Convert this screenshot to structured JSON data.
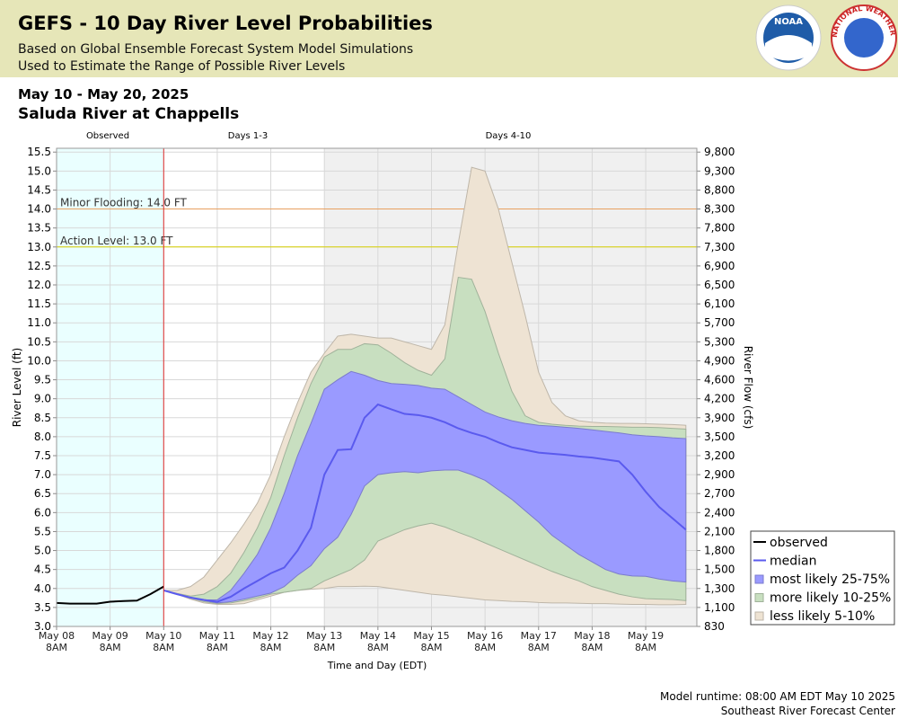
{
  "header": {
    "title": "GEFS - 10 Day River Level Probabilities",
    "subtitle_1": "Based on Global Ensemble Forecast System Model Simulations",
    "subtitle_2": "Used to Estimate the Range of Possible River Levels",
    "date_range": "May 10 - May 20, 2025",
    "location": "Saluda River at Chappells"
  },
  "logos": {
    "noaa": "NOAA",
    "nws": "NATIONAL WEATHER SERVICE"
  },
  "chart_data": {
    "type": "band",
    "x_label": "Time and Day (EDT)",
    "y_label": "River Level (ft)",
    "y2_label": "River Flow (cfs)",
    "periods": [
      {
        "label": "Observed",
        "color": "#eaffff"
      },
      {
        "label": "Days 1-3",
        "color": "#ffffff"
      },
      {
        "label": "Days 4-10",
        "color": "#f0f0f0"
      }
    ],
    "categories": [
      "May 08 8AM",
      null,
      null,
      null,
      "May 09 8AM",
      null,
      null,
      null,
      "May 10 8AM",
      null,
      null,
      null,
      "May 11 8AM",
      null,
      null,
      null,
      "May 12 8AM",
      null,
      null,
      null,
      "May 13 8AM",
      null,
      null,
      null,
      "May 14 8AM",
      null,
      null,
      null,
      "May 15 8AM",
      null,
      null,
      null,
      "May 16 8AM",
      null,
      null,
      null,
      "May 17 8AM",
      null,
      null,
      null,
      "May 18 8AM",
      null,
      null,
      null,
      "May 19 8AM",
      null,
      null,
      null
    ],
    "ylim": [
      3.0,
      15.6
    ],
    "yticks": [
      {
        "value": 3,
        "label": "3.0"
      },
      3.5,
      {
        "value": 4,
        "label": "4.0"
      },
      4.5,
      {
        "value": 5,
        "label": "5.0"
      },
      5.5,
      {
        "value": 6,
        "label": "6.0"
      },
      6.5,
      {
        "value": 7,
        "label": "7.0"
      },
      7.5,
      {
        "value": 8,
        "label": "8.0"
      },
      8.5,
      {
        "value": 9,
        "label": "9.0"
      },
      9.5,
      {
        "value": 10,
        "label": "10.0"
      },
      10.5,
      {
        "value": 11,
        "label": "11.0"
      },
      11.5,
      {
        "value": 12,
        "label": "12.0"
      },
      12.5,
      {
        "value": 13,
        "label": "13.0"
      },
      13.5,
      {
        "value": 14,
        "label": "14.0"
      },
      14.5,
      {
        "value": 15,
        "label": "15.0"
      },
      15.5
    ],
    "y2ticks": [
      830,
      {
        "value": 1100,
        "label": "1,100"
      },
      {
        "value": 1300,
        "label": "1,300"
      },
      {
        "value": 1500,
        "label": "1,500"
      },
      {
        "value": 1800,
        "label": "1,800"
      },
      {
        "value": 2100,
        "label": "2,100"
      },
      {
        "value": 2400,
        "label": "2,400"
      },
      {
        "value": 2700,
        "label": "2,700"
      },
      {
        "value": 2900,
        "label": "2,900"
      },
      {
        "value": 3200,
        "label": "3,200"
      },
      {
        "value": 3500,
        "label": "3,500"
      },
      {
        "value": 3900,
        "label": "3,900"
      },
      {
        "value": 4200,
        "label": "4,200"
      },
      {
        "value": 4600,
        "label": "4,600"
      },
      {
        "value": 4900,
        "label": "4,900"
      },
      {
        "value": 5300,
        "label": "5,300"
      },
      {
        "value": 5700,
        "label": "5,700"
      },
      {
        "value": 6100,
        "label": "6,100"
      },
      {
        "value": 6500,
        "label": "6,500"
      },
      {
        "value": 6900,
        "label": "6,900"
      },
      {
        "value": 7300,
        "label": "7,300"
      },
      {
        "value": 7800,
        "label": "7,800"
      },
      {
        "value": 8300,
        "label": "8,300"
      },
      {
        "value": 8800,
        "label": "8,800"
      },
      {
        "value": 9300,
        "label": "9,300"
      },
      {
        "value": 9800,
        "label": "9,800"
      }
    ],
    "grid": true,
    "annotations": [
      {
        "label": "Minor Flooding: 14.0 FT",
        "value": 14,
        "color": "#e8a060"
      },
      {
        "label": "Action Level: 13.0 FT",
        "value": 13,
        "color": "#d8d000"
      }
    ],
    "series": [
      {
        "name": "observed",
        "color": "#000000",
        "values": [
          3.62,
          3.6,
          3.6,
          3.6,
          3.65,
          3.67,
          3.68,
          3.85,
          4.05,
          null,
          null,
          null,
          null,
          null,
          null,
          null,
          null,
          null,
          null,
          null,
          null,
          null,
          null,
          null,
          null,
          null,
          null,
          null,
          null,
          null,
          null,
          null,
          null,
          null,
          null,
          null,
          null,
          null,
          null,
          null,
          null,
          null,
          null,
          null,
          null,
          null,
          null,
          null
        ]
      },
      {
        "name": "median",
        "color": "#5a5aee",
        "values": [
          null,
          null,
          null,
          null,
          null,
          null,
          null,
          null,
          3.95,
          3.85,
          3.76,
          3.7,
          3.65,
          3.78,
          4.0,
          4.2,
          4.4,
          4.55,
          5.0,
          5.6,
          7.0,
          7.65,
          7.67,
          8.5,
          8.85,
          8.72,
          8.6,
          8.57,
          8.5,
          8.38,
          8.22,
          8.1,
          8.0,
          7.85,
          7.72,
          7.65,
          7.58,
          7.55,
          7.52,
          7.48,
          7.45,
          7.4,
          7.35,
          7.0,
          6.55,
          6.15,
          5.85,
          5.55
        ]
      },
      {
        "name": "most likely 25-75%",
        "color": "#9a9aff",
        "high": [
          null,
          null,
          null,
          null,
          null,
          null,
          null,
          null,
          3.95,
          3.85,
          3.75,
          3.7,
          3.7,
          3.95,
          4.4,
          4.9,
          5.6,
          6.5,
          7.5,
          8.35,
          9.25,
          9.5,
          9.72,
          9.62,
          9.48,
          9.4,
          9.38,
          9.35,
          9.28,
          9.25,
          9.05,
          8.85,
          8.65,
          8.52,
          8.42,
          8.35,
          8.3,
          8.28,
          8.25,
          8.22,
          8.18,
          8.14,
          8.1,
          8.05,
          8.02,
          8.0,
          7.97,
          7.95
        ],
        "low": [
          null,
          null,
          null,
          null,
          null,
          null,
          null,
          null,
          3.95,
          3.85,
          3.75,
          3.68,
          3.62,
          3.65,
          3.72,
          3.8,
          3.88,
          4.05,
          4.35,
          4.6,
          5.05,
          5.35,
          5.95,
          6.7,
          7.0,
          7.05,
          7.08,
          7.05,
          7.1,
          7.12,
          7.12,
          7.0,
          6.85,
          6.6,
          6.35,
          6.05,
          5.75,
          5.4,
          5.15,
          4.9,
          4.7,
          4.5,
          4.38,
          4.33,
          4.32,
          4.25,
          4.2,
          4.17
        ]
      },
      {
        "name": "more likely 10-25%",
        "color": "#c8dfc0",
        "high": [
          null,
          null,
          null,
          null,
          null,
          null,
          null,
          null,
          3.95,
          3.87,
          3.8,
          3.85,
          4.05,
          4.4,
          4.95,
          5.6,
          6.4,
          7.5,
          8.5,
          9.4,
          10.1,
          10.3,
          10.3,
          10.45,
          10.42,
          10.2,
          9.95,
          9.75,
          9.62,
          10.05,
          12.2,
          12.15,
          11.3,
          10.2,
          9.2,
          8.55,
          8.38,
          8.33,
          8.3,
          8.28,
          8.27,
          8.27,
          8.26,
          8.25,
          8.25,
          8.24,
          8.22,
          8.2
        ],
        "low": [
          null,
          null,
          null,
          null,
          null,
          null,
          null,
          null,
          3.95,
          3.85,
          3.75,
          3.65,
          3.6,
          3.62,
          3.68,
          3.75,
          3.85,
          3.9,
          3.95,
          4.0,
          4.2,
          4.35,
          4.5,
          4.75,
          5.25,
          5.4,
          5.55,
          5.65,
          5.72,
          5.62,
          5.48,
          5.35,
          5.2,
          5.05,
          4.9,
          4.75,
          4.6,
          4.45,
          4.32,
          4.2,
          4.05,
          3.95,
          3.85,
          3.78,
          3.73,
          3.72,
          3.71,
          3.68
        ]
      },
      {
        "name": "less likely 5-10%",
        "color": "#eee3d3",
        "high": [
          null,
          null,
          null,
          null,
          null,
          null,
          null,
          null,
          3.95,
          3.95,
          4.05,
          4.3,
          4.75,
          5.2,
          5.7,
          6.25,
          7.0,
          8.0,
          8.9,
          9.7,
          10.2,
          10.65,
          10.7,
          10.65,
          10.6,
          10.6,
          10.5,
          10.4,
          10.3,
          10.95,
          13.1,
          15.1,
          15.0,
          14.0,
          12.6,
          11.2,
          9.7,
          8.9,
          8.55,
          8.42,
          8.38,
          8.36,
          8.35,
          8.35,
          8.34,
          8.33,
          8.32,
          8.3
        ],
        "low": [
          null,
          null,
          null,
          null,
          null,
          null,
          null,
          null,
          3.95,
          3.85,
          3.72,
          3.62,
          3.58,
          3.58,
          3.6,
          3.7,
          3.8,
          3.9,
          3.95,
          3.98,
          4.0,
          4.05,
          4.05,
          4.06,
          4.05,
          4.0,
          3.95,
          3.9,
          3.85,
          3.82,
          3.78,
          3.74,
          3.7,
          3.68,
          3.66,
          3.65,
          3.63,
          3.62,
          3.62,
          3.61,
          3.6,
          3.6,
          3.59,
          3.58,
          3.58,
          3.57,
          3.57,
          3.58
        ]
      }
    ]
  },
  "footer": {
    "runtime": "Model runtime: 08:00 AM EDT May 10 2025",
    "center": "Southeast River Forecast Center"
  }
}
